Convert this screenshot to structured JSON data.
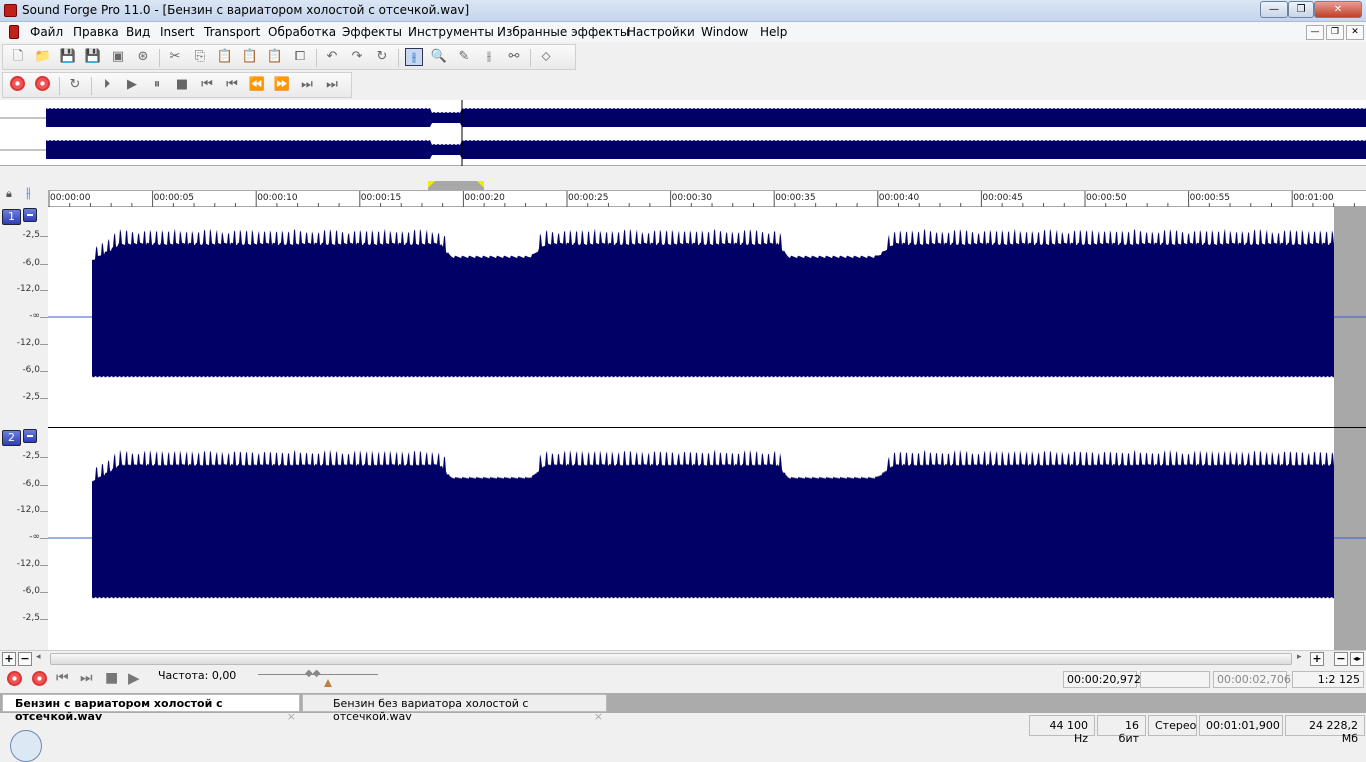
{
  "window": {
    "title": "Sound Forge Pro 11.0 - [Бензин с вариатором холостой с отсечкой.wav]"
  },
  "menu": [
    "Файл",
    "Правка",
    "Вид",
    "Insert",
    "Transport",
    "Обработка",
    "Эффекты",
    "Инструменты",
    "Избранные эффекты",
    "Настройки",
    "Window",
    "Help"
  ],
  "ruler": [
    "00:00:00",
    "00:00:05",
    "00:00:10",
    "00:00:15",
    "00:00:20",
    "00:00:25",
    "00:00:30",
    "00:00:35",
    "00:00:40",
    "00:00:45",
    "00:00:50",
    "00:00:55",
    "00:01:00"
  ],
  "channels": [
    {
      "number": "1"
    },
    {
      "number": "2"
    }
  ],
  "db_scale": [
    "-2,5",
    "-6,0",
    "-12,0",
    "-∞",
    "-12,0",
    "-6,0",
    "-2,5"
  ],
  "transport": {
    "rate_label": "Частота: 0,00",
    "cursor_pos": "00:00:20,972",
    "selection": "",
    "selection_length": "00:00:02,706",
    "zoom": "1:2 125"
  },
  "tabs": [
    {
      "label": "Бензин с вариатором холостой с отсечкой.wav",
      "active": true
    },
    {
      "label": "Бензин без вариатора холостой с отсечкой.wav",
      "active": false
    }
  ],
  "status": {
    "sample_rate": "44 100 Hz",
    "bit_depth": "16 бит",
    "channels": "Стерео",
    "length": "00:01:01,900",
    "disk_space": "24 228,2 Мб"
  },
  "colors": {
    "waveform": "#000066",
    "channel_button": "#3a4bc4",
    "title_bar": "#c9d9ee"
  }
}
